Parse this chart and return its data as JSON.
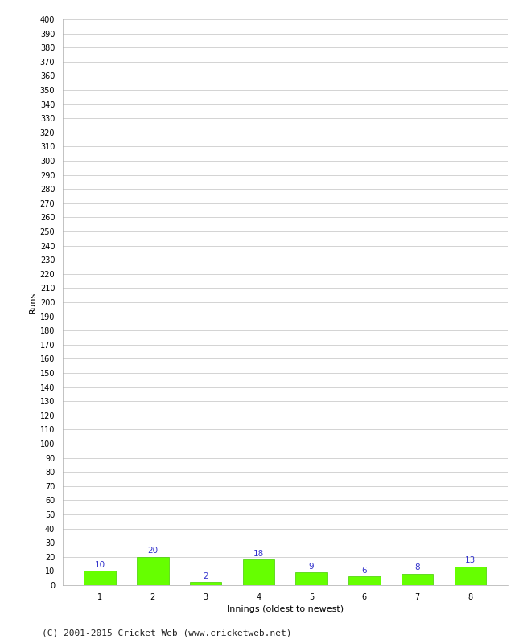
{
  "categories": [
    "1",
    "2",
    "3",
    "4",
    "5",
    "6",
    "7",
    "8"
  ],
  "values": [
    10,
    20,
    2,
    18,
    9,
    6,
    8,
    13
  ],
  "bar_color": "#66ff00",
  "bar_edge_color": "#44cc00",
  "label_color": "#3333cc",
  "label_fontsize": 7.5,
  "xlabel": "Innings (oldest to newest)",
  "ylabel": "Runs",
  "ylim": [
    0,
    400
  ],
  "ytick_step": 10,
  "background_color": "#ffffff",
  "grid_color": "#cccccc",
  "footnote": "(C) 2001-2015 Cricket Web (www.cricketweb.net)",
  "footnote_fontsize": 8,
  "tick_fontsize": 7,
  "axis_label_fontsize": 8
}
